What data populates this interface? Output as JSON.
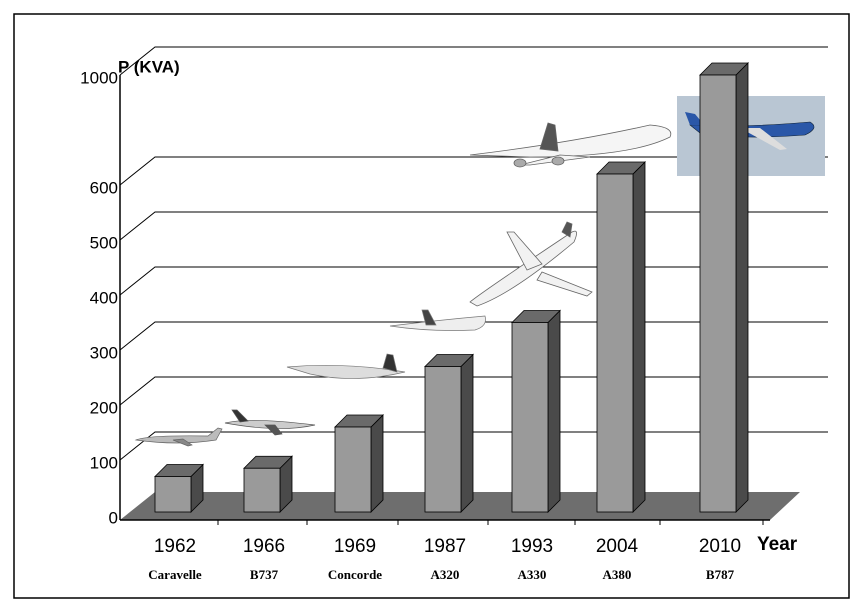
{
  "chart_data": {
    "type": "bar3d",
    "y_label": "P (KVA)",
    "x_label": "Year",
    "categories": [
      "1962",
      "1966",
      "1969",
      "1987",
      "1993",
      "2004",
      "2010"
    ],
    "aircraft": [
      "Caravelle",
      "B737",
      "Concorde",
      "A320",
      "A330",
      "A380",
      "B787"
    ],
    "values": [
      70,
      85,
      160,
      270,
      350,
      640,
      1000
    ],
    "color": "#9a9a9a",
    "ylim": [
      0,
      1000
    ],
    "yticks": [
      0,
      100,
      200,
      300,
      400,
      500,
      600,
      1000
    ],
    "grid": true
  }
}
